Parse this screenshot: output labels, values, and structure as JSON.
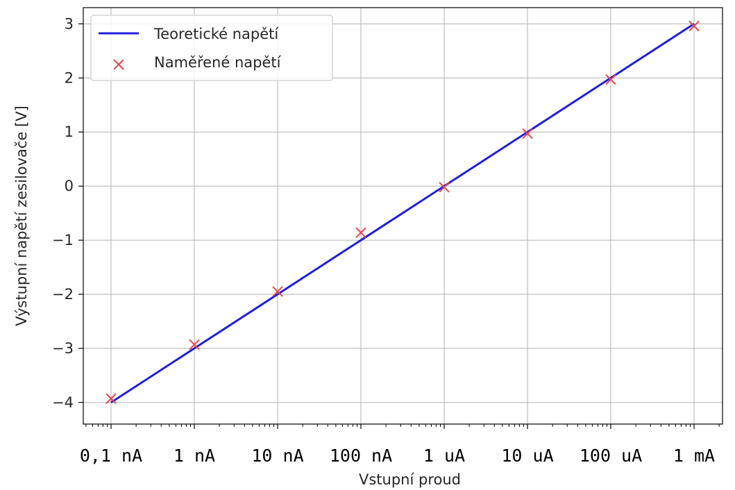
{
  "chart_data": {
    "type": "line",
    "xscale": "log",
    "x": [
      "0,1 nA",
      "1 nA",
      "10 nA",
      "100 nA",
      "1 uA",
      "10 uA",
      "100 uA",
      "1 mA"
    ],
    "xlabel": "Vstupní proud",
    "ylabel": "Výstupní napětí zesilovače [V]",
    "ylim": [
      -4.4,
      3.3
    ],
    "yticks": [
      -4,
      -3,
      -2,
      -1,
      0,
      1,
      2,
      3
    ],
    "ytick_labels": [
      "−4",
      "−3",
      "−2",
      "−1",
      "0",
      "1",
      "2",
      "3"
    ],
    "grid": true,
    "legend_position": "top-left",
    "series": [
      {
        "name": "Teoretické napětí",
        "kind": "line",
        "color": "#1f1fe0",
        "values": [
          -4,
          -3,
          -2,
          -1,
          0,
          1,
          2,
          3
        ]
      },
      {
        "name": "Naměřené napětí",
        "kind": "scatter",
        "marker": "x",
        "color": "#e8474a",
        "values": [
          -3.93,
          -2.93,
          -1.95,
          -0.86,
          -0.02,
          0.97,
          1.97,
          2.96
        ]
      }
    ]
  }
}
